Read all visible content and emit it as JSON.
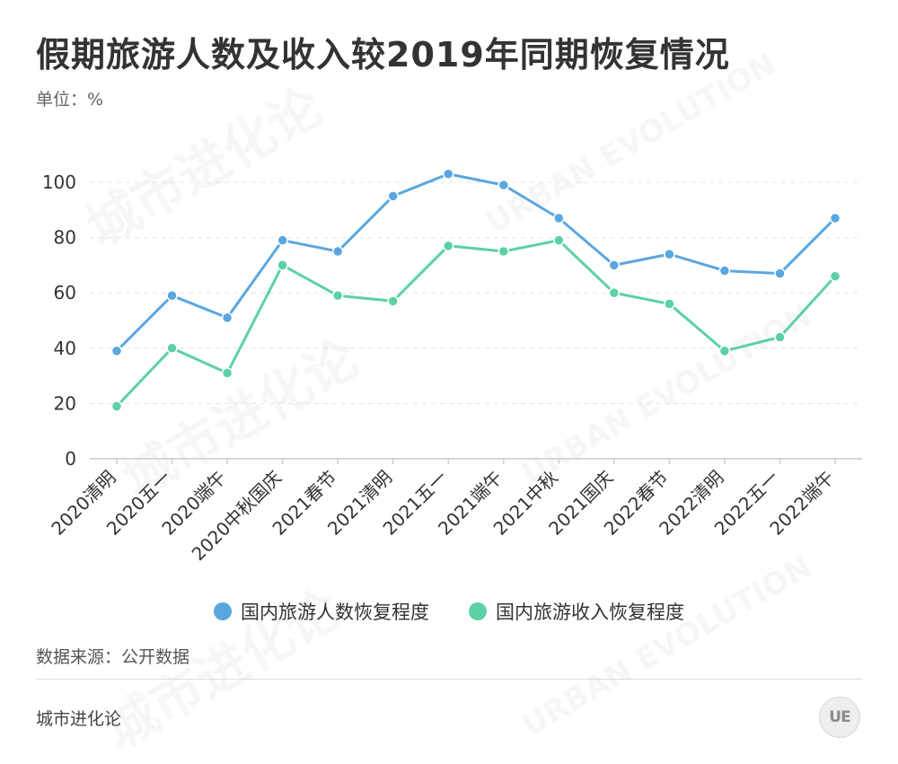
{
  "title": "假期旅游人数及收入较2019年同期恢复情况",
  "unit_label": "单位：%",
  "source_label": "数据来源：公开数据",
  "brand": "城市进化论",
  "logo_text": "UE",
  "watermark": [
    "城市进化论",
    "URBAN EVOLUTION"
  ],
  "colors": {
    "series_people": "#5aa7e0",
    "series_income": "#5cd1a3",
    "axis": "#cccccc",
    "grid": "#e3e3e3",
    "tick_text": "#333333"
  },
  "chart_data": {
    "type": "line",
    "title": "假期旅游人数及收入较2019年同期恢复情况",
    "xlabel": "",
    "ylabel": "单位：%",
    "ylim": [
      0,
      100
    ],
    "yticks": [
      0,
      20,
      40,
      60,
      80,
      100
    ],
    "grid": "horizontal dashed",
    "legend_position": "bottom",
    "categories": [
      "2020清明",
      "2020五一",
      "2020端午",
      "2020中秋国庆",
      "2021春节",
      "2021清明",
      "2021五一",
      "2021端午",
      "2021中秋",
      "2021国庆",
      "2022春节",
      "2022清明",
      "2022五一",
      "2022端午"
    ],
    "series": [
      {
        "name": "国内旅游人数恢复程度",
        "color": "#5aa7e0",
        "values": [
          39,
          59,
          51,
          79,
          75,
          95,
          103,
          99,
          87,
          70,
          74,
          68,
          67,
          87
        ]
      },
      {
        "name": "国内旅游收入恢复程度",
        "color": "#5cd1a3",
        "values": [
          19,
          40,
          31,
          70,
          59,
          57,
          77,
          75,
          79,
          60,
          56,
          39,
          44,
          66
        ]
      }
    ]
  }
}
